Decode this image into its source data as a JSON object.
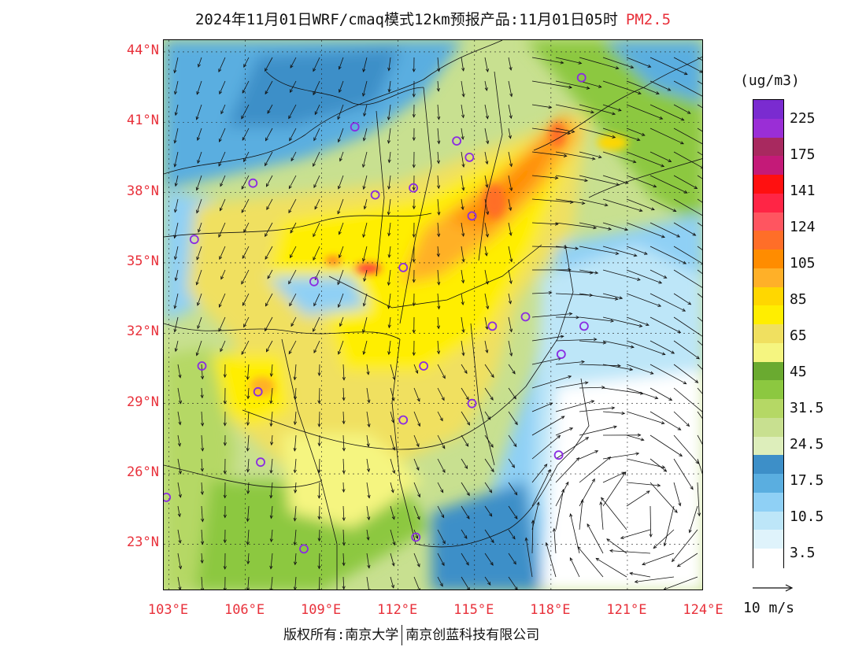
{
  "title": {
    "main": "2024年11月01日WRF/cmaq模式12km预报产品:11月01日05时",
    "pollutant": "PM2.5"
  },
  "axes": {
    "lat_labels": [
      "44°N",
      "41°N",
      "38°N",
      "35°N",
      "32°N",
      "29°N",
      "26°N",
      "23°N"
    ],
    "lon_labels": [
      "103°E",
      "106°E",
      "109°E",
      "112°E",
      "115°E",
      "118°E",
      "121°E",
      "124°E"
    ],
    "lat_range": [
      21,
      44.5
    ],
    "lon_range": [
      102.8,
      124
    ]
  },
  "legend": {
    "unit": "(ug/m3)",
    "labels": [
      "225",
      "175",
      "141",
      "124",
      "105",
      "85",
      "65",
      "45",
      "31.5",
      "24.5",
      "17.5",
      "10.5",
      "3.5"
    ],
    "colors": [
      "#7a2bd0",
      "#9a2ed6",
      "#a8295f",
      "#c41a78",
      "#ff1010",
      "#ff2545",
      "#ff5560",
      "#ff6e28",
      "#ff8c00",
      "#ffb028",
      "#ffd700",
      "#ffee00",
      "#f0e060",
      "#f5f580",
      "#6aaa30",
      "#8cc840",
      "#b5d865",
      "#c8e090",
      "#ddeebb",
      "#3d8fc8",
      "#5aaee0",
      "#8fd0f5",
      "#bde6f8",
      "#dff3fb",
      "#ffffff"
    ],
    "wind_reference": "10 m/s"
  },
  "copyright": {
    "left": "版权所有:南京大学",
    "right": "南京创蓝科技有限公司"
  },
  "cities": [
    {
      "lon": 119.2,
      "lat": 42.9
    },
    {
      "lon": 110.3,
      "lat": 40.8
    },
    {
      "lon": 114.3,
      "lat": 40.2
    },
    {
      "lon": 114.8,
      "lat": 39.5
    },
    {
      "lon": 106.3,
      "lat": 38.4
    },
    {
      "lon": 111.1,
      "lat": 37.9
    },
    {
      "lon": 112.6,
      "lat": 38.2
    },
    {
      "lon": 114.9,
      "lat": 37.0
    },
    {
      "lon": 104.0,
      "lat": 36.0
    },
    {
      "lon": 112.2,
      "lat": 34.8
    },
    {
      "lon": 108.7,
      "lat": 34.2
    },
    {
      "lon": 115.7,
      "lat": 32.3
    },
    {
      "lon": 117.0,
      "lat": 32.7
    },
    {
      "lon": 119.3,
      "lat": 32.3
    },
    {
      "lon": 118.4,
      "lat": 31.1
    },
    {
      "lon": 104.3,
      "lat": 30.6
    },
    {
      "lon": 106.5,
      "lat": 29.5
    },
    {
      "lon": 113.0,
      "lat": 30.6
    },
    {
      "lon": 112.2,
      "lat": 28.3
    },
    {
      "lon": 114.9,
      "lat": 29.0
    },
    {
      "lon": 118.3,
      "lat": 26.8
    },
    {
      "lon": 106.6,
      "lat": 26.5
    },
    {
      "lon": 102.9,
      "lat": 25.0
    },
    {
      "lon": 112.7,
      "lat": 23.3
    },
    {
      "lon": 108.3,
      "lat": 22.8
    }
  ]
}
